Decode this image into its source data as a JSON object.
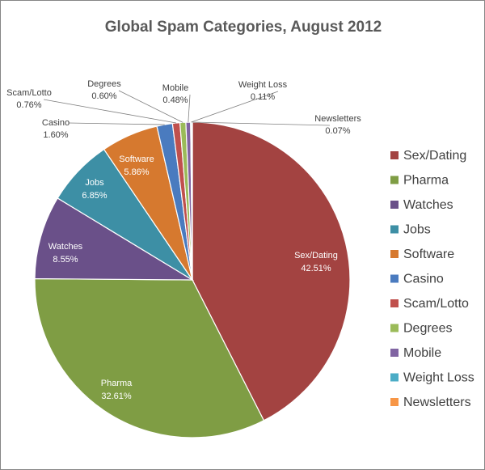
{
  "chart_data": {
    "type": "pie",
    "title": "Global Spam Categories, August 2012",
    "slices": [
      {
        "label": "Sex/Dating",
        "value": 42.51,
        "value_label": "42.51%",
        "color": "#a34341"
      },
      {
        "label": "Pharma",
        "value": 32.61,
        "value_label": "32.61%",
        "color": "#7f9d44"
      },
      {
        "label": "Watches",
        "value": 8.55,
        "value_label": "8.55%",
        "color": "#6a5089"
      },
      {
        "label": "Jobs",
        "value": 6.85,
        "value_label": "6.85%",
        "color": "#3d8fa5"
      },
      {
        "label": "Software",
        "value": 5.86,
        "value_label": "5.86%",
        "color": "#d6792f"
      },
      {
        "label": "Casino",
        "value": 1.6,
        "value_label": "1.60%",
        "color": "#4a7bbf"
      },
      {
        "label": "Scam/Lotto",
        "value": 0.76,
        "value_label": "0.76%",
        "color": "#c0504d"
      },
      {
        "label": "Degrees",
        "value": 0.6,
        "value_label": "0.60%",
        "color": "#9bbb59"
      },
      {
        "label": "Mobile",
        "value": 0.48,
        "value_label": "0.48%",
        "color": "#8064a2"
      },
      {
        "label": "Weight Loss",
        "value": 0.11,
        "value_label": "0.11%",
        "color": "#4bacc6"
      },
      {
        "label": "Newsletters",
        "value": 0.07,
        "value_label": "0.07%",
        "color": "#f79646"
      }
    ],
    "legend_position": "right",
    "start_angle": "12 o'clock",
    "direction": "clockwise"
  }
}
